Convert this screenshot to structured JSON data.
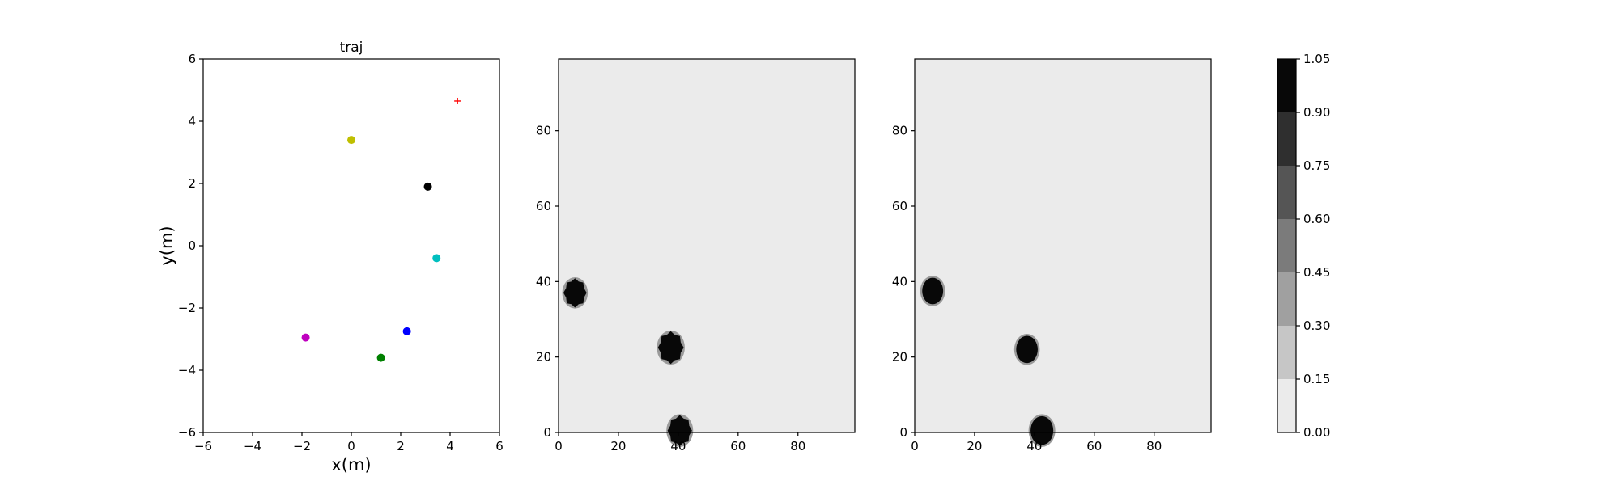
{
  "chart_data": [
    {
      "type": "scatter",
      "title": "traj",
      "xlabel": "x(m)",
      "ylabel": "y(m)",
      "xlim": [
        -6,
        6
      ],
      "ylim": [
        -6,
        6
      ],
      "xticks": [
        -6,
        -4,
        -2,
        0,
        2,
        4,
        6
      ],
      "yticks": [
        -6,
        -4,
        -2,
        0,
        2,
        4,
        6
      ],
      "grid": false,
      "points": [
        {
          "x": 0.0,
          "y": 3.4,
          "color": "#bfbf00",
          "marker": "circle"
        },
        {
          "x": 3.1,
          "y": 1.9,
          "color": "#000000",
          "marker": "circle"
        },
        {
          "x": 3.45,
          "y": -0.4,
          "color": "#00bfbf",
          "marker": "circle"
        },
        {
          "x": 2.25,
          "y": -2.75,
          "color": "#0000ff",
          "marker": "circle"
        },
        {
          "x": 1.2,
          "y": -3.6,
          "color": "#008000",
          "marker": "circle"
        },
        {
          "x": -1.85,
          "y": -2.95,
          "color": "#bf00bf",
          "marker": "circle"
        },
        {
          "x": 4.3,
          "y": 4.65,
          "color": "#ff0000",
          "marker": "plus"
        }
      ]
    },
    {
      "type": "heatmap",
      "xlim": [
        0,
        99
      ],
      "ylim": [
        0,
        99
      ],
      "xticks": [
        0,
        20,
        40,
        60,
        80
      ],
      "yticks": [
        0,
        20,
        40,
        60,
        80
      ],
      "background_value": 0.05,
      "blobs": [
        {
          "cx": 5.5,
          "cy": 37,
          "r": 3.6,
          "value": 1.0,
          "shape": "jagged"
        },
        {
          "cx": 37.5,
          "cy": 22.5,
          "r": 4.0,
          "value": 1.0,
          "shape": "jagged"
        },
        {
          "cx": 40.5,
          "cy": 0.5,
          "r": 3.8,
          "value": 1.0,
          "shape": "jagged"
        }
      ]
    },
    {
      "type": "heatmap",
      "xlim": [
        0,
        99
      ],
      "ylim": [
        0,
        99
      ],
      "xticks": [
        0,
        20,
        40,
        60,
        80
      ],
      "yticks": [
        0,
        20,
        40,
        60,
        80
      ],
      "background_value": 0.05,
      "blobs": [
        {
          "cx": 6,
          "cy": 37.5,
          "r": 3.5,
          "value": 1.0,
          "shape": "smooth"
        },
        {
          "cx": 37.5,
          "cy": 22,
          "r": 3.6,
          "value": 1.0,
          "shape": "smooth"
        },
        {
          "cx": 42.5,
          "cy": 0.5,
          "r": 3.8,
          "value": 1.0,
          "shape": "smooth"
        }
      ]
    }
  ],
  "colorbar": {
    "levels": [
      0.0,
      0.15,
      0.3,
      0.45,
      0.6,
      0.75,
      0.9,
      1.05
    ],
    "tick_labels": [
      "0.00",
      "0.15",
      "0.30",
      "0.45",
      "0.60",
      "0.75",
      "0.90",
      "1.05"
    ],
    "band_colors": [
      "#ebebeb",
      "#c6c6c6",
      "#a0a0a0",
      "#7b7b7b",
      "#555555",
      "#2f2f2f",
      "#080808"
    ]
  }
}
